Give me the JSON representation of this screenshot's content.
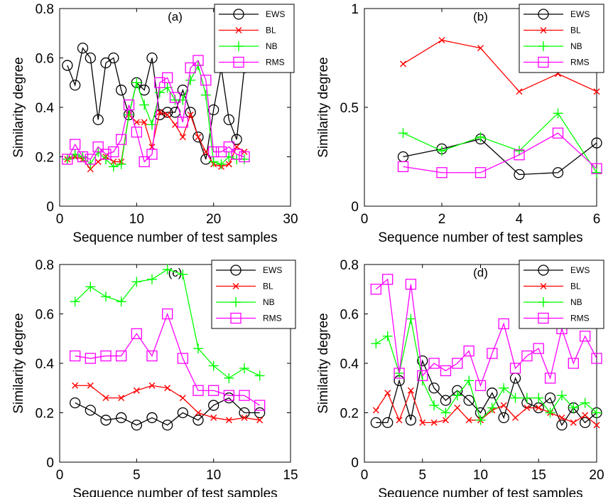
{
  "figure": {
    "colors": {
      "EWS": "#000000",
      "BL": "#ff0000",
      "NB": "#00ff00",
      "RMS": "#ff00ff"
    },
    "markers": {
      "EWS": "circle",
      "BL": "x",
      "NB": "plus",
      "RMS": "square"
    }
  },
  "chart_data": [
    {
      "id": "a",
      "type": "line",
      "title": "(a)",
      "xlabel": "Sequence number of test samples",
      "ylabel": "Similarity degree",
      "xlim": [
        0,
        30
      ],
      "ylim": [
        0,
        0.8
      ],
      "xticks": [
        0,
        10,
        20,
        30
      ],
      "xtick_labels": [
        "0",
        "10",
        "20",
        "30"
      ],
      "yticks": [
        0,
        0.2,
        0.4,
        0.6,
        0.8
      ],
      "ytick_labels": [
        "0",
        "0.2",
        "0.4",
        "0.6",
        "0.8"
      ],
      "grid": false,
      "legend": "top-right",
      "x": [
        1,
        2,
        3,
        4,
        5,
        6,
        7,
        8,
        9,
        10,
        11,
        12,
        13,
        14,
        15,
        16,
        17,
        18,
        19,
        20,
        21,
        22,
        23,
        24
      ],
      "series": [
        {
          "name": "EWS",
          "values": [
            0.57,
            0.49,
            0.64,
            0.6,
            0.35,
            0.58,
            0.6,
            0.47,
            0.37,
            0.5,
            0.47,
            0.6,
            0.37,
            0.38,
            0.38,
            0.47,
            0.38,
            0.28,
            0.19,
            0.39,
            0.56,
            0.35,
            0.27,
            0.56
          ]
        },
        {
          "name": "BL",
          "values": [
            0.19,
            0.2,
            0.19,
            0.15,
            0.18,
            0.2,
            0.18,
            0.18,
            0.37,
            0.34,
            0.34,
            0.24,
            0.38,
            0.37,
            0.33,
            0.28,
            0.37,
            0.28,
            0.22,
            0.17,
            0.16,
            0.17,
            0.24,
            0.22
          ]
        },
        {
          "name": "NB",
          "values": [
            0.19,
            0.21,
            0.2,
            0.17,
            0.22,
            0.19,
            0.16,
            0.17,
            0.37,
            0.5,
            0.41,
            0.33,
            0.46,
            0.48,
            0.43,
            0.43,
            0.51,
            0.57,
            0.45,
            0.18,
            0.17,
            0.2,
            0.19,
            0.19
          ]
        },
        {
          "name": "RMS",
          "values": [
            0.19,
            0.25,
            0.2,
            0.19,
            0.24,
            0.21,
            0.22,
            0.27,
            0.41,
            0.3,
            0.18,
            0.21,
            0.5,
            0.52,
            0.44,
            0.34,
            0.56,
            0.59,
            0.51,
            0.22,
            0.22,
            0.24,
            0.21,
            0.2
          ]
        }
      ]
    },
    {
      "id": "b",
      "type": "line",
      "title": "(b)",
      "xlabel": "Sequence number of test samples",
      "ylabel": "Similarity degree",
      "xlim": [
        0,
        6
      ],
      "ylim": [
        0,
        1
      ],
      "xticks": [
        0,
        2,
        4,
        6
      ],
      "xtick_labels": [
        "0",
        "2",
        "4",
        "6"
      ],
      "yticks": [
        0,
        0.5,
        1
      ],
      "ytick_labels": [
        "0",
        "0.5",
        "1"
      ],
      "grid": false,
      "legend": "top-right",
      "x": [
        1,
        2,
        3,
        4,
        5,
        6
      ],
      "series": [
        {
          "name": "EWS",
          "values": [
            0.25,
            0.29,
            0.34,
            0.16,
            0.17,
            0.32
          ]
        },
        {
          "name": "BL",
          "values": [
            0.72,
            0.84,
            0.8,
            0.58,
            0.67,
            0.58
          ]
        },
        {
          "name": "NB",
          "values": [
            0.37,
            0.28,
            0.35,
            0.28,
            0.47,
            0.17
          ]
        },
        {
          "name": "RMS",
          "values": [
            0.2,
            0.17,
            0.17,
            0.26,
            0.37,
            0.19
          ]
        }
      ]
    },
    {
      "id": "c",
      "type": "line",
      "title": "(c)",
      "xlabel": "Sequence number of test samples",
      "ylabel": "Similarity degree",
      "xlim": [
        0,
        15
      ],
      "ylim": [
        0,
        0.8
      ],
      "xticks": [
        0,
        5,
        10,
        15
      ],
      "xtick_labels": [
        "0",
        "5",
        "10",
        "15"
      ],
      "yticks": [
        0,
        0.2,
        0.4,
        0.6,
        0.8
      ],
      "ytick_labels": [
        "0",
        "0.2",
        "0.4",
        "0.6",
        "0.8"
      ],
      "grid": false,
      "legend": "top-right",
      "x": [
        1,
        2,
        3,
        4,
        5,
        6,
        7,
        8,
        9,
        10,
        11,
        12,
        13
      ],
      "series": [
        {
          "name": "EWS",
          "values": [
            0.24,
            0.21,
            0.17,
            0.18,
            0.15,
            0.18,
            0.15,
            0.2,
            0.17,
            0.23,
            0.26,
            0.2,
            0.2
          ]
        },
        {
          "name": "BL",
          "values": [
            0.31,
            0.31,
            0.26,
            0.26,
            0.29,
            0.31,
            0.3,
            0.26,
            0.2,
            0.18,
            0.17,
            0.18,
            0.17
          ]
        },
        {
          "name": "NB",
          "values": [
            0.65,
            0.71,
            0.67,
            0.65,
            0.73,
            0.74,
            0.78,
            0.76,
            0.46,
            0.39,
            0.34,
            0.38,
            0.35
          ]
        },
        {
          "name": "RMS",
          "values": [
            0.43,
            0.42,
            0.43,
            0.43,
            0.52,
            0.43,
            0.6,
            0.42,
            0.29,
            0.29,
            0.27,
            0.27,
            0.23
          ]
        }
      ]
    },
    {
      "id": "d",
      "type": "line",
      "title": "(d)",
      "xlabel": "Sequence number of test samples",
      "ylabel": "Similarity degree",
      "xlim": [
        0,
        20
      ],
      "ylim": [
        0,
        0.8
      ],
      "xticks": [
        0,
        5,
        10,
        15,
        20
      ],
      "xtick_labels": [
        "0",
        "5",
        "10",
        "15",
        "20"
      ],
      "yticks": [
        0,
        0.2,
        0.4,
        0.6,
        0.8
      ],
      "ytick_labels": [
        "0",
        "0.2",
        "0.4",
        "0.6",
        "0.8"
      ],
      "grid": false,
      "legend": "top-right",
      "x": [
        1,
        2,
        3,
        4,
        5,
        6,
        7,
        8,
        9,
        10,
        11,
        12,
        13,
        14,
        15,
        16,
        17,
        18,
        19,
        20
      ],
      "series": [
        {
          "name": "EWS",
          "values": [
            0.16,
            0.16,
            0.33,
            0.17,
            0.41,
            0.3,
            0.25,
            0.29,
            0.25,
            0.2,
            0.28,
            0.18,
            0.34,
            0.24,
            0.22,
            0.26,
            0.15,
            0.22,
            0.16,
            0.2
          ]
        },
        {
          "name": "BL",
          "values": [
            0.21,
            0.28,
            0.17,
            0.29,
            0.16,
            0.16,
            0.17,
            0.22,
            0.17,
            0.17,
            0.21,
            0.23,
            0.18,
            0.22,
            0.22,
            0.2,
            0.18,
            0.16,
            0.19,
            0.15
          ]
        },
        {
          "name": "NB",
          "values": [
            0.48,
            0.51,
            0.36,
            0.58,
            0.33,
            0.23,
            0.2,
            0.27,
            0.33,
            0.17,
            0.22,
            0.3,
            0.26,
            0.26,
            0.26,
            0.2,
            0.27,
            0.22,
            0.24,
            0.2
          ]
        },
        {
          "name": "RMS",
          "values": [
            0.7,
            0.74,
            0.36,
            0.72,
            0.35,
            0.4,
            0.37,
            0.4,
            0.45,
            0.31,
            0.44,
            0.56,
            0.38,
            0.43,
            0.46,
            0.34,
            0.54,
            0.4,
            0.51,
            0.42
          ]
        }
      ]
    }
  ]
}
